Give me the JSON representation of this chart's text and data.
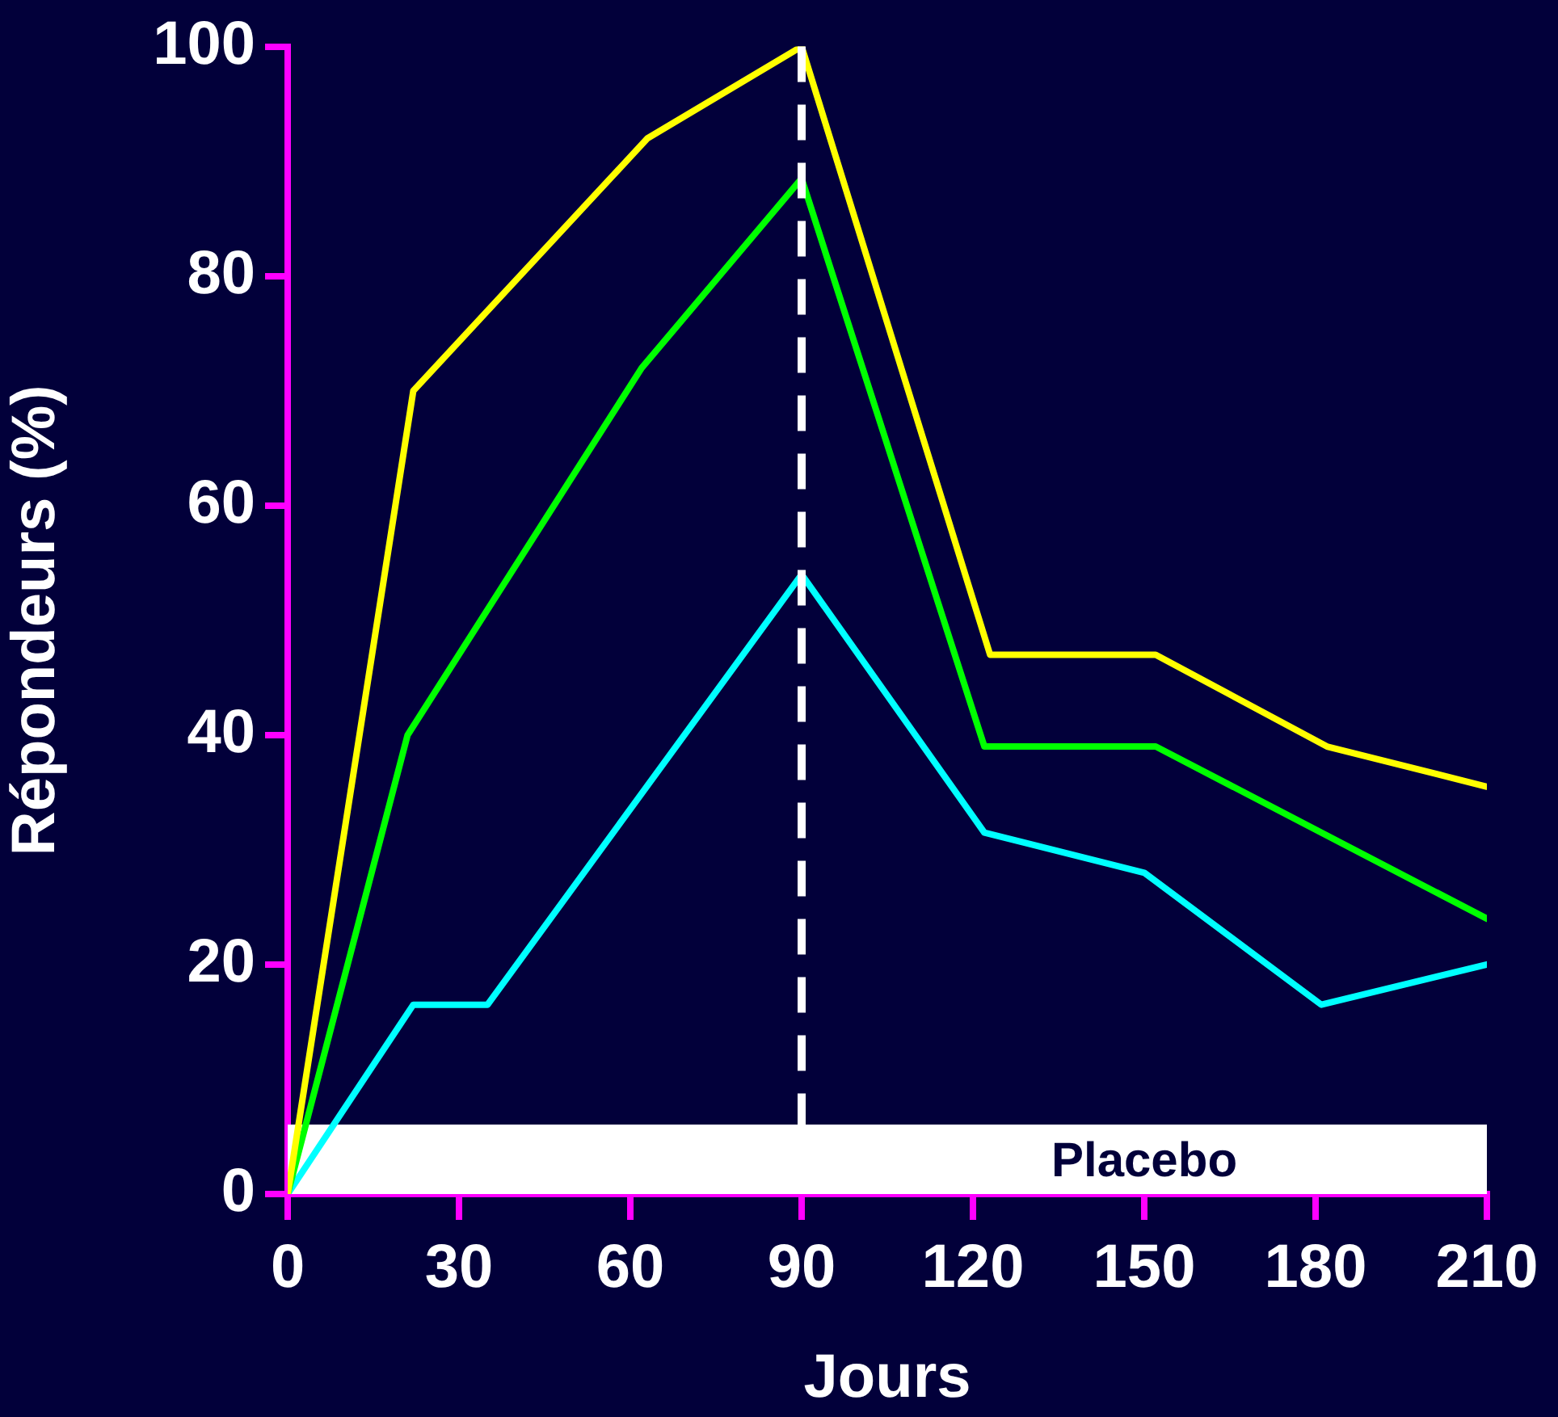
{
  "chart_data": {
    "type": "line",
    "xlabel": "Jours",
    "ylabel": "Répondeurs (%)",
    "xlim": [
      0,
      210
    ],
    "xticks": [
      0,
      30,
      60,
      90,
      120,
      150,
      180,
      210
    ],
    "ylim": [
      0,
      100
    ],
    "yticks": [
      0,
      20,
      40,
      60,
      80,
      100
    ],
    "grid": false,
    "legend": false,
    "marker": "none",
    "line_style": "solid",
    "series": [
      {
        "color": "#ffff00",
        "x": [
          0,
          22,
          63,
          90,
          123,
          152,
          182,
          210
        ],
        "values": [
          0,
          70,
          92,
          100,
          47,
          47,
          39,
          35.5
        ]
      },
      {
        "color": "#00ff00",
        "x": [
          0,
          21,
          62,
          90,
          122,
          152,
          210
        ],
        "values": [
          0,
          40,
          72,
          88.5,
          39,
          39,
          24
        ]
      },
      {
        "color": "#00ffff",
        "x": [
          0,
          22,
          35,
          90,
          122,
          150,
          181,
          210
        ],
        "values": [
          0,
          16.5,
          16.5,
          54,
          31.5,
          28,
          16.5,
          20
        ]
      }
    ],
    "ref_lines": [
      {
        "axis": "x",
        "value": 90,
        "color": "#ffffff",
        "line_style": "dashed"
      }
    ],
    "bands": [
      {
        "axis": "x",
        "from": 0,
        "to": 90,
        "color": "#ffffff"
      },
      {
        "axis": "x",
        "from": 90,
        "to": 210,
        "color": "#ffffff",
        "label": "Placebo"
      }
    ]
  }
}
